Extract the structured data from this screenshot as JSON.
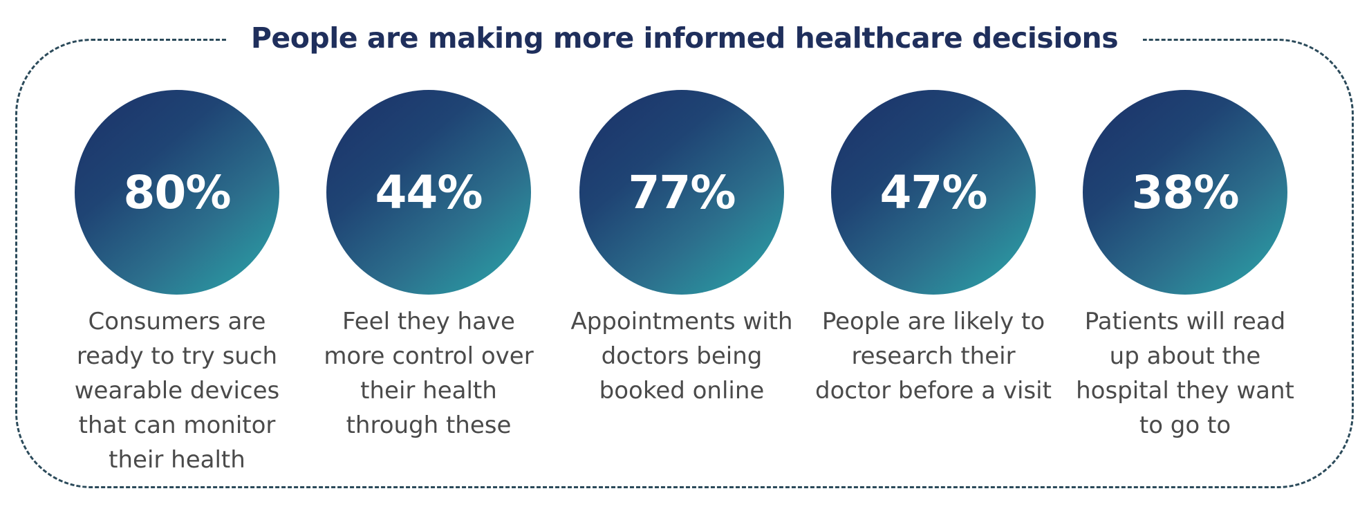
{
  "title": "People are making more informed healthcare decisions",
  "stats": [
    {
      "value": "80%",
      "description": "Consumers are\nready to try such\nwearable devices\nthat can monitor\ntheir health"
    },
    {
      "value": "44%",
      "description": "Feel they have\nmore control over\ntheir health\nthrough these"
    },
    {
      "value": "77%",
      "description": "Appointments with\ndoctors being\nbooked online"
    },
    {
      "value": "47%",
      "description": "People are likely to\nresearch their\ndoctor before a visit"
    },
    {
      "value": "38%",
      "description": "Patients will read\nup about the\nhospital they want\nto go to"
    }
  ],
  "colors": {
    "title": "#1f2f5c",
    "frame": "#2b4a5a",
    "circle_start": "#1b3168",
    "circle_end": "#2aa8aa",
    "description": "#4a4a4a"
  }
}
